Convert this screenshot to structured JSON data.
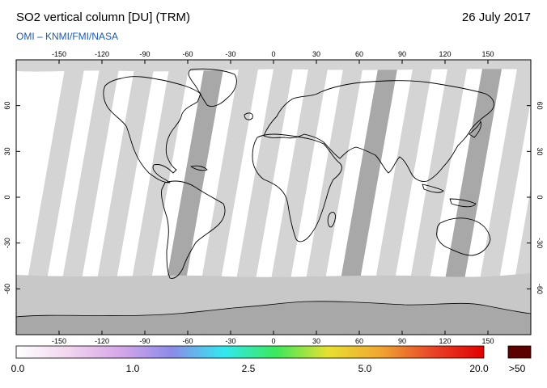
{
  "header": {
    "title": "SO2 vertical column [DU] (TRM)",
    "date": "26 July 2017",
    "credit": "OMI  –  KNMI/FMI/NASA"
  },
  "map": {
    "projection": "equirectangular",
    "lon_range": [
      -180,
      180
    ],
    "lat_range": [
      -90,
      90
    ],
    "lon_ticks": [
      "-150",
      "-120",
      "-90",
      "-60",
      "-30",
      "0",
      "30",
      "60",
      "90",
      "120",
      "150"
    ],
    "lat_ticks": [
      "60",
      "30",
      "0",
      "-30",
      "-60"
    ],
    "colors": {
      "no_data": "#ffffff",
      "swath_light": "#d4d4d4",
      "swath_dark": "#a8a8a8",
      "polar": "#c8c8c8",
      "coastline": "#000000"
    }
  },
  "colorbar": {
    "labels": [
      "0.0",
      "1.0",
      "2.5",
      "5.0",
      "20.0"
    ],
    "overflow_label": ">50",
    "overflow_color": "#5c0000",
    "gradient_colors": [
      "#ffffff",
      "#f2d6f0",
      "#d7a6e8",
      "#8b8be8",
      "#33e8f0",
      "#3ce85a",
      "#e8e032",
      "#f0a632",
      "#e84628",
      "#e00000"
    ]
  }
}
